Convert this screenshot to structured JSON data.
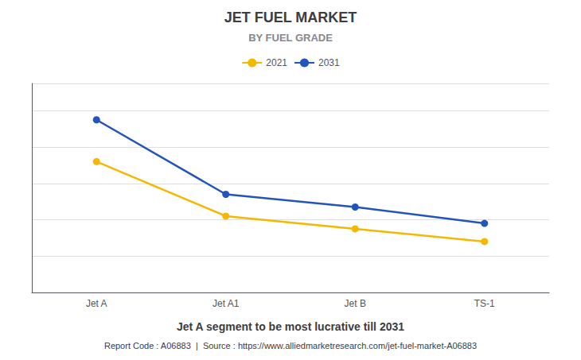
{
  "chart_data": {
    "type": "line",
    "title": "JET FUEL MARKET",
    "subtitle": "BY FUEL GRADE",
    "categories": [
      "Jet A",
      "Jet A1",
      "Jet B",
      "TS-1"
    ],
    "series": [
      {
        "name": "2021",
        "color": "#F5B800",
        "values": [
          72,
          42,
          35,
          28
        ]
      },
      {
        "name": "2031",
        "color": "#2255BB",
        "values": [
          95,
          54,
          47,
          38
        ]
      }
    ],
    "ylim": [
      0,
      115
    ],
    "yticks": [
      0,
      20,
      40,
      60,
      80,
      100
    ],
    "grid": true,
    "legend": "top",
    "tick_labels": "x",
    "marker": "circle",
    "annotations": [
      "Jet A segment to be most lucrative till 2031",
      "Report Code : A06883  |  Source : https://www.alliedmarketresearch.com/jet-fuel-market-A06883"
    ]
  }
}
